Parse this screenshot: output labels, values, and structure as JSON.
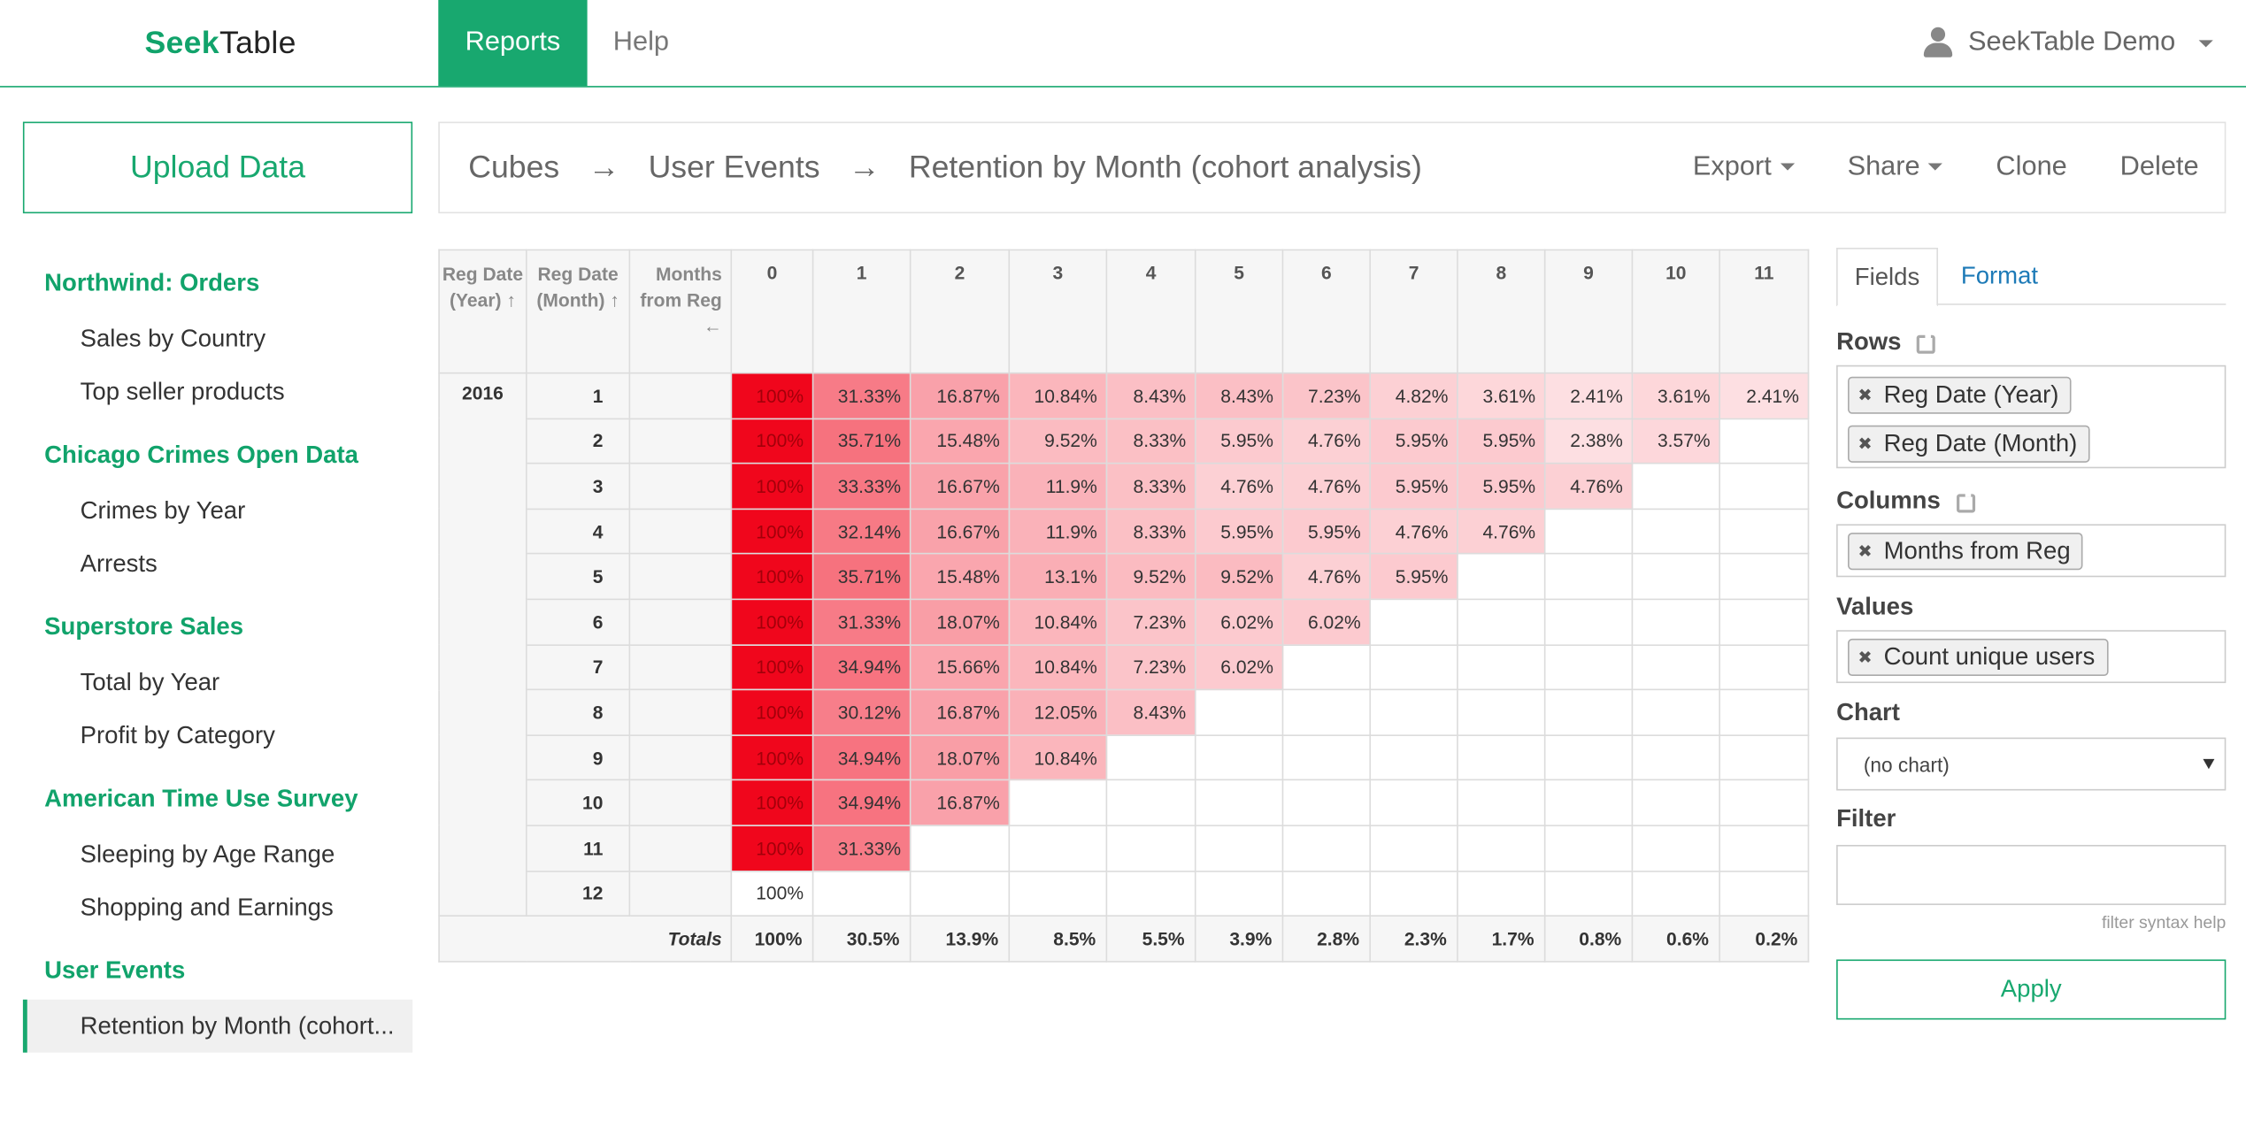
{
  "header": {
    "logo_seek": "Seek",
    "logo_table": "Table",
    "nav_reports": "Reports",
    "nav_help": "Help",
    "user_name": "SeekTable Demo"
  },
  "sidebar": {
    "upload_label": "Upload Data",
    "groups": [
      {
        "title": "Northwind: Orders",
        "items": [
          "Sales by Country",
          "Top seller products"
        ]
      },
      {
        "title": "Chicago Crimes Open Data",
        "items": [
          "Crimes by Year",
          "Arrests"
        ]
      },
      {
        "title": "Superstore Sales",
        "items": [
          "Total by Year",
          "Profit by Category"
        ]
      },
      {
        "title": "American Time Use Survey",
        "items": [
          "Sleeping by Age Range",
          "Shopping and Earnings"
        ]
      },
      {
        "title": "User Events",
        "items": [
          "Retention by Month (cohort..."
        ]
      }
    ],
    "active_item": "Retention by Month (cohort..."
  },
  "breadcrumb": {
    "items": [
      "Cubes",
      "User Events",
      "Retention by Month (cohort analysis)"
    ],
    "separator": "→",
    "actions": {
      "export": "Export",
      "share": "Share",
      "clone": "Clone",
      "delete": "Delete"
    }
  },
  "pivot": {
    "header_labels": {
      "reg_date_year": "Reg Date (Year) ↑",
      "reg_date_month": "Reg Date (Month) ↑",
      "months_from_reg": "Months from Reg ←"
    },
    "columns": [
      "0",
      "1",
      "2",
      "3",
      "4",
      "5",
      "6",
      "7",
      "8",
      "9",
      "10",
      "11"
    ],
    "year": "2016",
    "rows": [
      {
        "month": "1",
        "values": [
          "100%",
          "31.33%",
          "16.87%",
          "10.84%",
          "8.43%",
          "8.43%",
          "7.23%",
          "4.82%",
          "3.61%",
          "2.41%",
          "3.61%",
          "2.41%"
        ]
      },
      {
        "month": "2",
        "values": [
          "100%",
          "35.71%",
          "15.48%",
          "9.52%",
          "8.33%",
          "5.95%",
          "4.76%",
          "5.95%",
          "5.95%",
          "2.38%",
          "3.57%",
          ""
        ]
      },
      {
        "month": "3",
        "values": [
          "100%",
          "33.33%",
          "16.67%",
          "11.9%",
          "8.33%",
          "4.76%",
          "4.76%",
          "5.95%",
          "5.95%",
          "4.76%",
          "",
          ""
        ]
      },
      {
        "month": "4",
        "values": [
          "100%",
          "32.14%",
          "16.67%",
          "11.9%",
          "8.33%",
          "5.95%",
          "5.95%",
          "4.76%",
          "4.76%",
          "",
          "",
          ""
        ]
      },
      {
        "month": "5",
        "values": [
          "100%",
          "35.71%",
          "15.48%",
          "13.1%",
          "9.52%",
          "9.52%",
          "4.76%",
          "5.95%",
          "",
          "",
          "",
          ""
        ]
      },
      {
        "month": "6",
        "values": [
          "100%",
          "31.33%",
          "18.07%",
          "10.84%",
          "7.23%",
          "6.02%",
          "6.02%",
          "",
          "",
          "",
          "",
          ""
        ]
      },
      {
        "month": "7",
        "values": [
          "100%",
          "34.94%",
          "15.66%",
          "10.84%",
          "7.23%",
          "6.02%",
          "",
          "",
          "",
          "",
          "",
          ""
        ]
      },
      {
        "month": "8",
        "values": [
          "100%",
          "30.12%",
          "16.87%",
          "12.05%",
          "8.43%",
          "",
          "",
          "",
          "",
          "",
          "",
          ""
        ]
      },
      {
        "month": "9",
        "values": [
          "100%",
          "34.94%",
          "18.07%",
          "10.84%",
          "",
          "",
          "",
          "",
          "",
          "",
          "",
          ""
        ]
      },
      {
        "month": "10",
        "values": [
          "100%",
          "34.94%",
          "16.87%",
          "",
          "",
          "",
          "",
          "",
          "",
          "",
          "",
          ""
        ]
      },
      {
        "month": "11",
        "values": [
          "100%",
          "31.33%",
          "",
          "",
          "",
          "",
          "",
          "",
          "",
          "",
          "",
          ""
        ]
      },
      {
        "month": "12",
        "values": [
          "100%",
          "",
          "",
          "",
          "",
          "",
          "",
          "",
          "",
          "",
          "",
          ""
        ]
      }
    ],
    "totals_label": "Totals",
    "totals": [
      "100%",
      "30.5%",
      "13.9%",
      "8.5%",
      "5.5%",
      "3.9%",
      "2.8%",
      "2.3%",
      "1.7%",
      "0.8%",
      "0.6%",
      "0.2%"
    ],
    "heat_color_max": "#f0061c",
    "heat_color_min": "#ffffff"
  },
  "panel": {
    "tab_fields": "Fields",
    "tab_format": "Format",
    "rows_label": "Rows",
    "rows": [
      "Reg Date (Year)",
      "Reg Date (Month)"
    ],
    "columns_label": "Columns",
    "columns": [
      "Months from Reg"
    ],
    "values_label": "Values",
    "values": [
      "Count unique users"
    ],
    "chart_label": "Chart",
    "chart_value": "(no chart)",
    "filter_label": "Filter",
    "filter_value": "",
    "filter_help": "filter syntax help",
    "apply_label": "Apply"
  }
}
